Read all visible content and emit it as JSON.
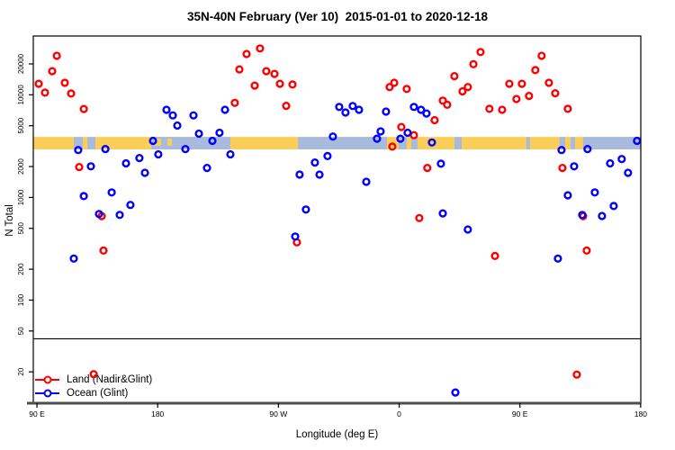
{
  "title": "35N-40N February (Ver 10)  2015-01-01 to 2020-12-18",
  "x_axis": {
    "title": "Longitude (deg E)",
    "note": "axis unwrapped eastward starting at 90E; 180=180, 270=90W, 360=0, 450=90E, 540=180",
    "range_deg": [
      87.3,
      540.1
    ],
    "ticks": [
      {
        "deg": 90,
        "label": "90 E"
      },
      {
        "deg": 180,
        "label": "180"
      },
      {
        "deg": 270,
        "label": "90 W"
      },
      {
        "deg": 360,
        "label": "0"
      },
      {
        "deg": 450,
        "label": "90 E"
      },
      {
        "deg": 540,
        "label": "180"
      }
    ]
  },
  "y_axis": {
    "title": "N Total",
    "scale": "log",
    "range": [
      9.9,
      37400
    ],
    "ticks": [
      20000,
      10000,
      5000,
      2000,
      1000,
      500,
      200,
      100,
      50,
      20
    ]
  },
  "legend": {
    "items": [
      {
        "label": "Land (Nadir&Glint)",
        "color": "#ff0000"
      },
      {
        "label": "Ocean (Glint)",
        "color": "#0000ff"
      }
    ]
  },
  "colors": {
    "land": "#ff0000",
    "ocean": "#0000ff",
    "band_land": "#fbce5a",
    "band_ocean": "#a9bbdc",
    "axis_baseline": "#4d4d4d"
  },
  "threshold_line": {
    "n": 42
  },
  "surface_band": {
    "n_range": [
      2940,
      3890
    ],
    "base": "land",
    "ocean_segments_deg": [
      [
        117.5,
        124.2
      ],
      [
        127.6,
        133.6
      ],
      [
        175.2,
        234.2
      ],
      [
        284.5,
        350.9
      ],
      [
        359.6,
        365.6
      ],
      [
        369.0,
        373.7
      ],
      [
        401.2,
        406.6
      ],
      [
        454.8,
        457.5
      ],
      [
        479.6,
        483.7
      ],
      [
        487.7,
        491.1
      ],
      [
        497.1,
        540.1
      ]
    ],
    "land_speckles_deg": [
      [
        177.9,
        182.6
      ],
      [
        187.3,
        190.6
      ]
    ]
  },
  "chart_data": {
    "type": "scatter",
    "xlabel": "Longitude (deg E)",
    "ylabel": "N Total",
    "y_log_scale": true,
    "series": [
      {
        "name": "Land (Nadir&Glint)",
        "color": "#ff0000",
        "points": [
          [
            104.8,
            24000
          ],
          [
            101.4,
            17000
          ],
          [
            91.3,
            12800
          ],
          [
            96.0,
            10500
          ],
          [
            110.8,
            13100
          ],
          [
            115.5,
            10300
          ],
          [
            124.9,
            7280
          ],
          [
            121.5,
            1980
          ],
          [
            138.3,
            658
          ],
          [
            139.6,
            304
          ],
          [
            132.3,
            19
          ],
          [
            246.3,
            25000
          ],
          [
            256.3,
            28300
          ],
          [
            240.9,
            17700
          ],
          [
            261.0,
            17000
          ],
          [
            267.1,
            16000
          ],
          [
            271.1,
            12800
          ],
          [
            280.5,
            12600
          ],
          [
            252.3,
            12300
          ],
          [
            237.5,
            8350
          ],
          [
            275.8,
            7800
          ],
          [
            283.8,
            365
          ],
          [
            352.9,
            11900
          ],
          [
            356.3,
            13100
          ],
          [
            365.6,
            11400
          ],
          [
            361.6,
            4860
          ],
          [
            371.0,
            4040
          ],
          [
            354.9,
            3130
          ],
          [
            392.5,
            8780
          ],
          [
            395.8,
            8000
          ],
          [
            386.4,
            5660
          ],
          [
            401.2,
            15200
          ],
          [
            407.2,
            10800
          ],
          [
            411.2,
            11900
          ],
          [
            415.3,
            19900
          ],
          [
            420.6,
            26100
          ],
          [
            381.0,
            1940
          ],
          [
            375.0,
            630
          ],
          [
            427.3,
            7300
          ],
          [
            431.4,
            269
          ],
          [
            436.7,
            7150
          ],
          [
            442.1,
            12800
          ],
          [
            447.4,
            9100
          ],
          [
            451.5,
            12800
          ],
          [
            456.8,
            9750
          ],
          [
            461.5,
            17400
          ],
          [
            466.2,
            24000
          ],
          [
            471.6,
            13100
          ],
          [
            476.3,
            10350
          ],
          [
            485.7,
            7300
          ],
          [
            481.7,
            1940
          ],
          [
            497.1,
            658
          ],
          [
            499.8,
            304
          ],
          [
            492.4,
            18.8
          ]
        ]
      },
      {
        "name": "Ocean (Glint)",
        "color": "#0000ff",
        "points": [
          [
            186.6,
            7150
          ],
          [
            191.3,
            6300
          ],
          [
            194.6,
            5020
          ],
          [
            120.8,
            2900
          ],
          [
            141.0,
            2960
          ],
          [
            176.5,
            3560
          ],
          [
            180.5,
            2630
          ],
          [
            166.4,
            2420
          ],
          [
            156.4,
            2150
          ],
          [
            130.2,
            2010
          ],
          [
            170.5,
            1740
          ],
          [
            124.9,
            1030
          ],
          [
            145.7,
            1120
          ],
          [
            136.3,
            690
          ],
          [
            151.7,
            676
          ],
          [
            159.7,
            845
          ],
          [
            200.7,
            2960
          ],
          [
            117.5,
            254
          ],
          [
            230.2,
            7150
          ],
          [
            206.7,
            6300
          ],
          [
            210.7,
            4180
          ],
          [
            226.1,
            4270
          ],
          [
            220.8,
            3560
          ],
          [
            234.2,
            2630
          ],
          [
            216.8,
            1940
          ],
          [
            315.3,
            7620
          ],
          [
            310.6,
            3920
          ],
          [
            297.2,
            2190
          ],
          [
            306.6,
            2530
          ],
          [
            285.8,
            1670
          ],
          [
            300.6,
            1670
          ],
          [
            290.5,
            763
          ],
          [
            282.5,
            416
          ],
          [
            320.0,
            6720
          ],
          [
            325.4,
            7780
          ],
          [
            330.1,
            7150
          ],
          [
            335.5,
            1420
          ],
          [
            350.2,
            6860
          ],
          [
            346.2,
            4400
          ],
          [
            343.5,
            3740
          ],
          [
            360.9,
            3740
          ],
          [
            366.3,
            4270
          ],
          [
            384.4,
            3430
          ],
          [
            391.1,
            2130
          ],
          [
            371.0,
            7620
          ],
          [
            376.3,
            7150
          ],
          [
            380.4,
            6580
          ],
          [
            392.5,
            700
          ],
          [
            411.2,
            487
          ],
          [
            401.9,
            12.6
          ],
          [
            481.0,
            2900
          ],
          [
            500.4,
            2960
          ],
          [
            537.3,
            3560
          ],
          [
            490.4,
            2010
          ],
          [
            517.2,
            2150
          ],
          [
            525.9,
            2370
          ],
          [
            530.6,
            1740
          ],
          [
            485.7,
            1050
          ],
          [
            505.8,
            1120
          ],
          [
            519.9,
            826
          ],
          [
            496.4,
            676
          ],
          [
            511.2,
            660
          ],
          [
            478.3,
            254
          ]
        ]
      }
    ]
  }
}
